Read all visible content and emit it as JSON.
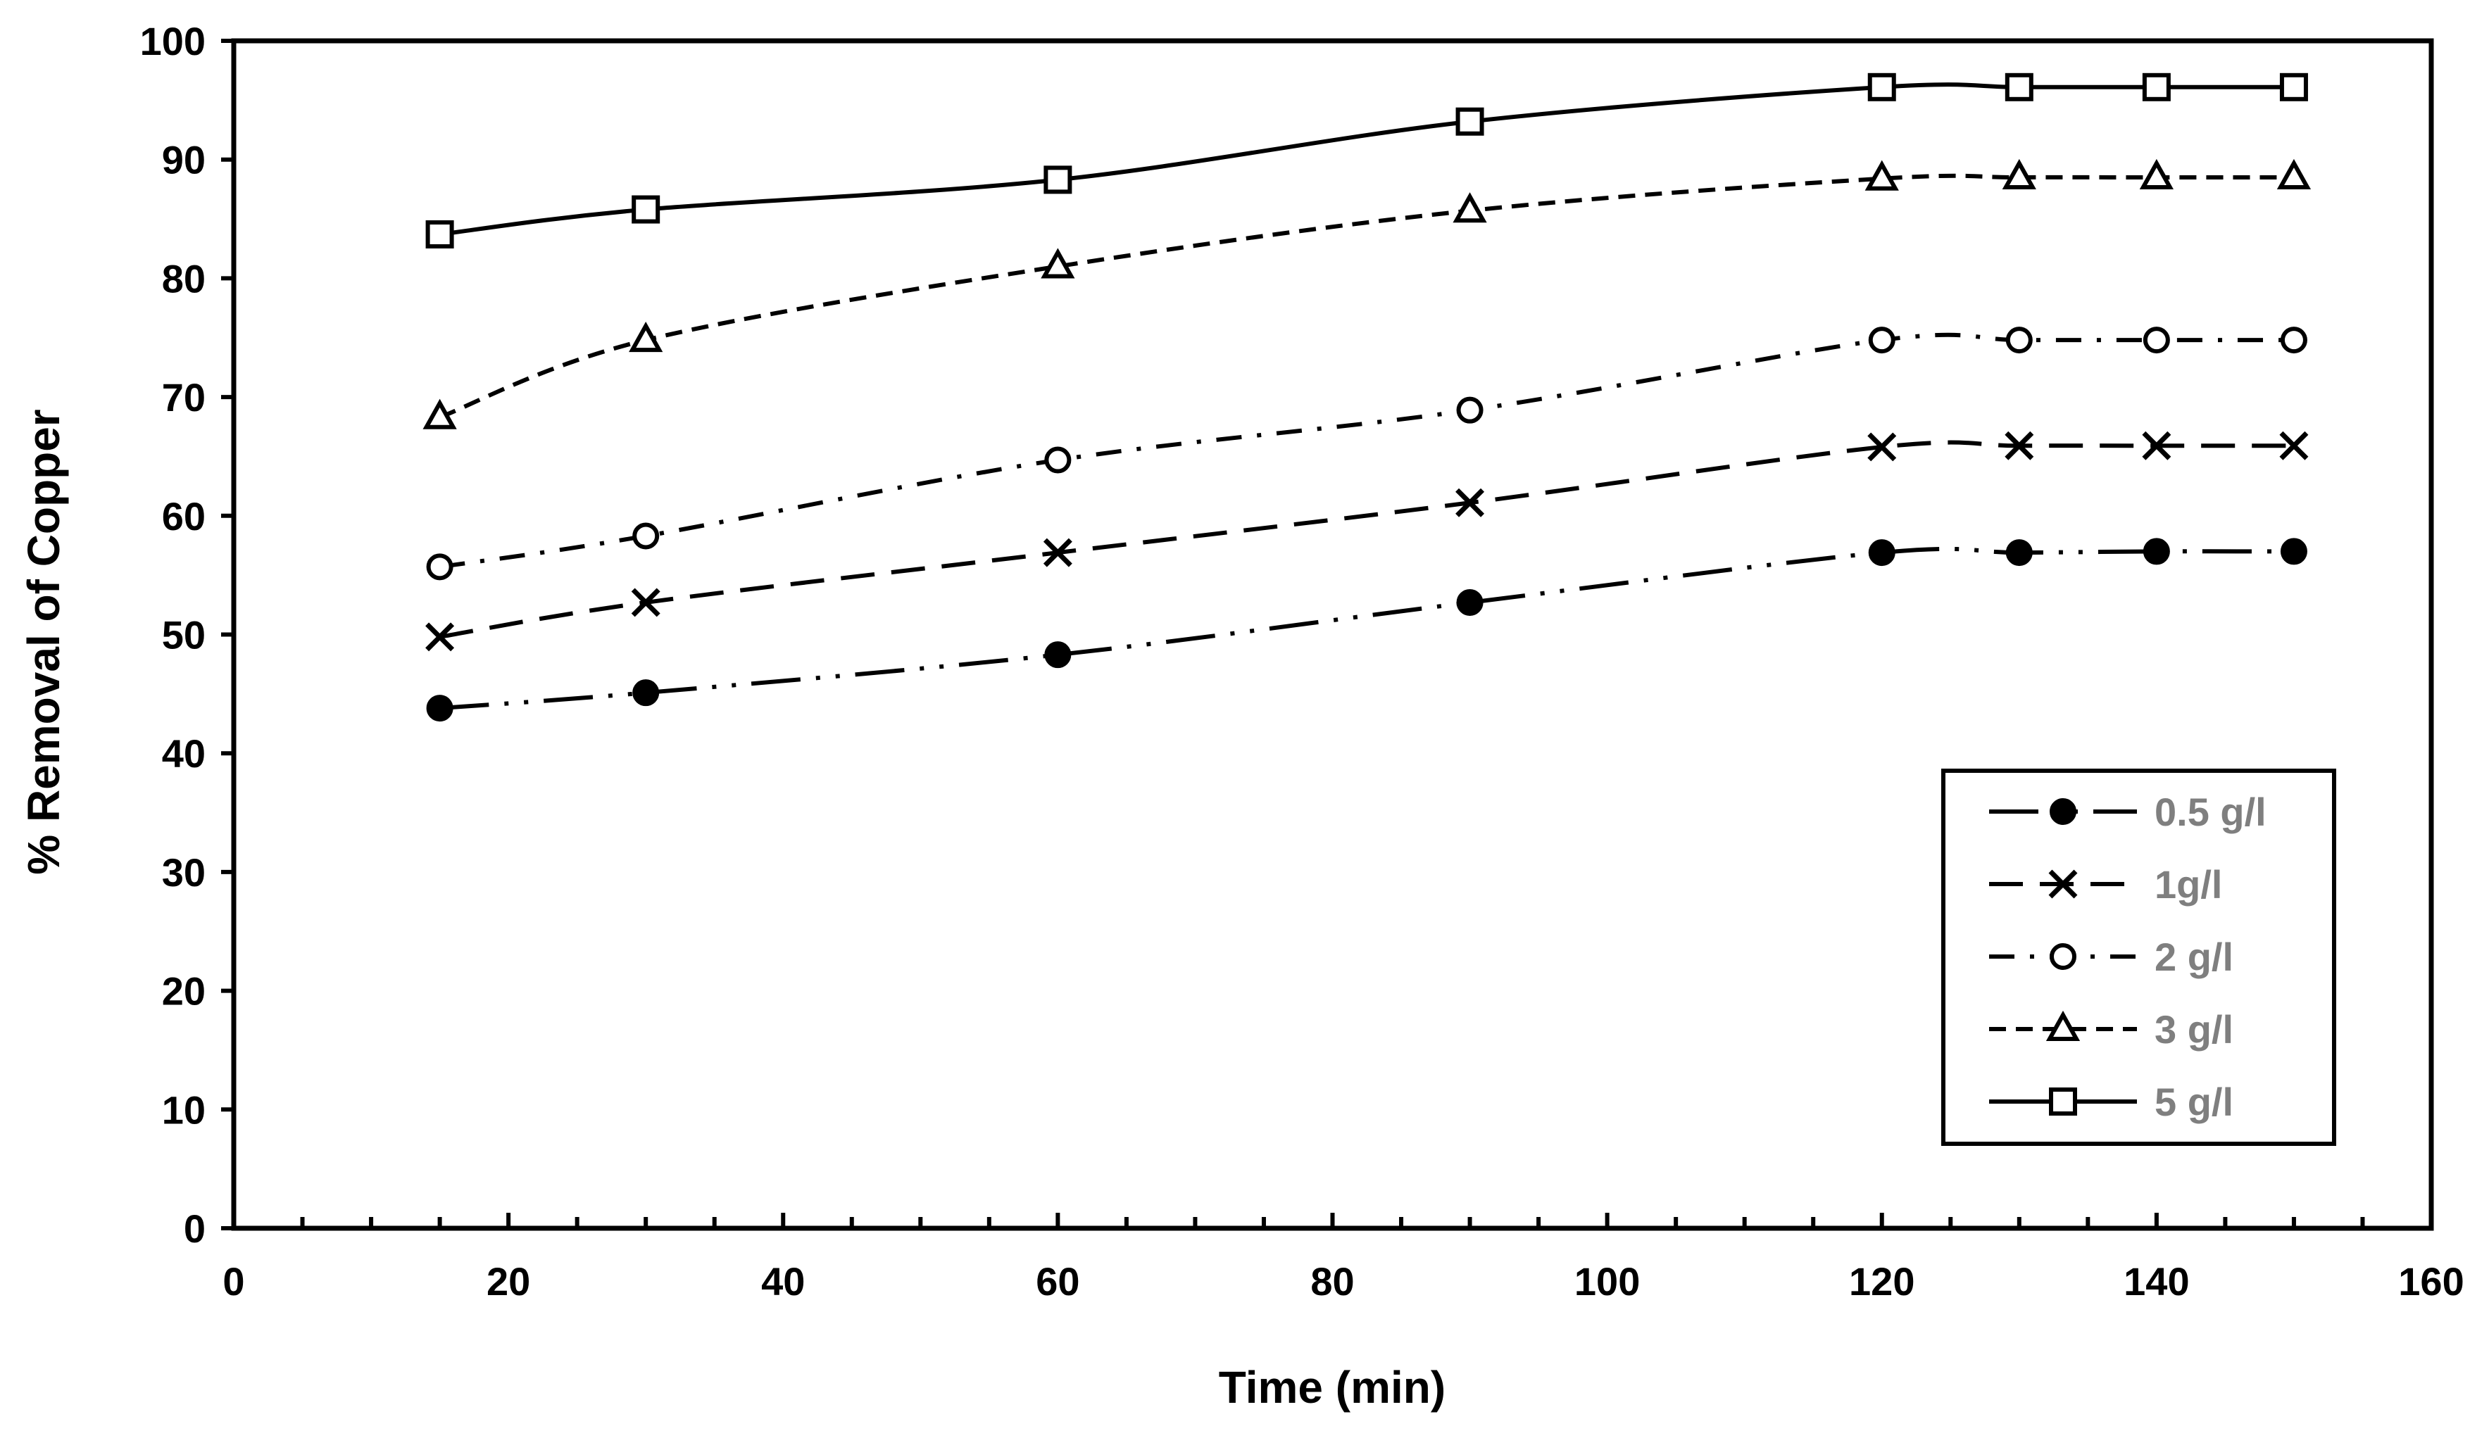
{
  "chart_data": {
    "type": "line",
    "title": "",
    "xlabel": "Time (min)",
    "ylabel": "% Removal of Copper",
    "xlim": [
      0,
      160
    ],
    "ylim": [
      0,
      100
    ],
    "x_ticks": [
      0,
      20,
      40,
      60,
      80,
      100,
      120,
      140,
      160
    ],
    "y_ticks": [
      0,
      10,
      20,
      30,
      40,
      50,
      60,
      70,
      80,
      90,
      100
    ],
    "x_minor_step": 5,
    "grid": false,
    "legend_position": "bottom-right",
    "x": [
      15,
      30,
      60,
      90,
      120,
      130,
      140,
      150
    ],
    "series": [
      {
        "name": "0.5 g/l",
        "marker": "filled-circle",
        "line_style": "long-dash-dot-dot",
        "values": [
          43.8,
          45.1,
          48.3,
          52.7,
          56.9,
          56.9,
          57.0,
          57.0
        ]
      },
      {
        "name": "1g/l",
        "marker": "cross",
        "line_style": "dash",
        "values": [
          49.8,
          52.7,
          56.9,
          61.1,
          65.8,
          65.9,
          65.9,
          65.9
        ]
      },
      {
        "name": "2 g/l",
        "marker": "open-circle",
        "line_style": "dash-dot",
        "values": [
          55.7,
          58.3,
          64.7,
          68.9,
          74.8,
          74.8,
          74.8,
          74.8
        ]
      },
      {
        "name": "3 g/l",
        "marker": "open-triangle",
        "line_style": "short-dash",
        "values": [
          68.3,
          74.8,
          81.0,
          85.7,
          88.4,
          88.5,
          88.5,
          88.5
        ]
      },
      {
        "name": "5 g/l",
        "marker": "open-square",
        "line_style": "solid",
        "values": [
          83.7,
          85.8,
          88.3,
          93.2,
          96.1,
          96.1,
          96.1,
          96.1
        ]
      }
    ]
  }
}
